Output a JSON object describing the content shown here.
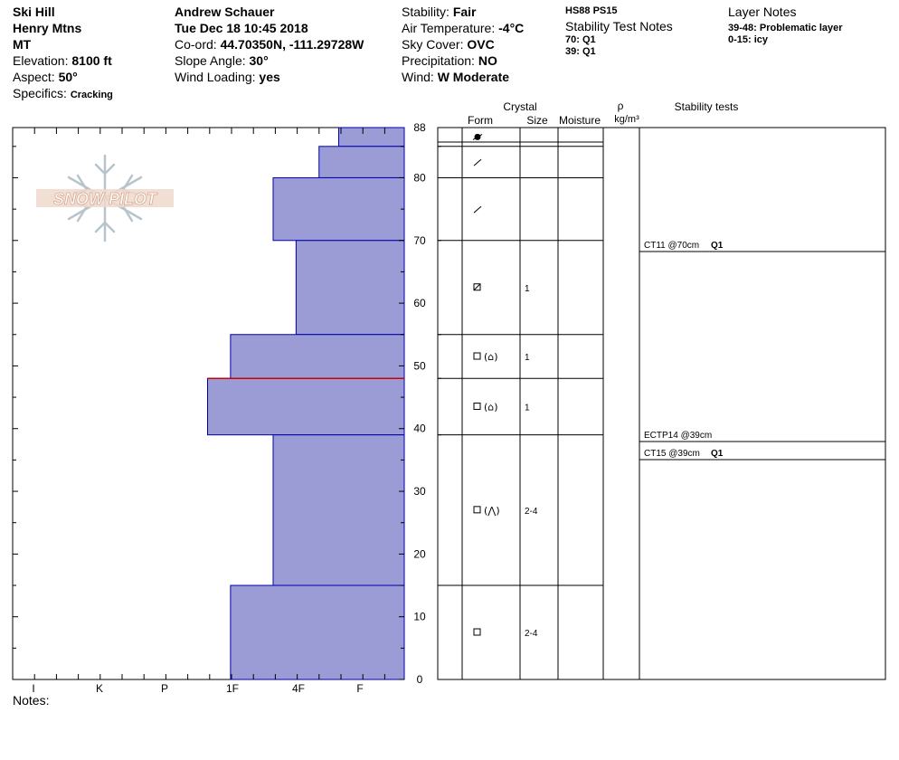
{
  "header": {
    "location": "Ski Hill",
    "range": "Henry Mtns",
    "state": "MT",
    "elevation_label": "Elevation:",
    "elevation": "8100 ft",
    "aspect_label": "Aspect:",
    "aspect": "50°",
    "specifics_label": "Specifics:",
    "specifics": "Cracking",
    "observer": "Andrew Schauer",
    "datetime": "Tue Dec 18 10:45 2018",
    "coord_label": "Co-ord:",
    "coord": "44.70350N, -111.29728W",
    "slope_label": "Slope Angle:",
    "slope": "30°",
    "wind_loading_label": "Wind Loading:",
    "wind_loading": "yes",
    "stability_label": "Stability:",
    "stability": "Fair",
    "air_temp_label": "Air Temperature:",
    "air_temp": "-4°C",
    "sky_label": "Sky Cover:",
    "sky": "OVC",
    "precip_label": "Precipitation:",
    "precip": "NO",
    "wind_label": "Wind:",
    "wind": "W Moderate",
    "hs_ps": "HS88  PS15",
    "stability_notes_title": "Stability Test Notes",
    "stability_notes": [
      "70: Q1",
      "39: Q1"
    ],
    "layer_notes_title": "Layer Notes",
    "layer_notes": [
      "39-48: Problematic layer",
      "0-15: icy"
    ]
  },
  "logo_text": "SNOW PILOT",
  "notes_label": "Notes:",
  "columns": {
    "crystal": "Crystal",
    "form": "Form",
    "size": "Size",
    "moisture": "Moisture",
    "rho": "ρ",
    "density_unit": "kg/m³",
    "stability_tests": "Stability tests"
  },
  "colors": {
    "hardness_fill": "#9b9bd6",
    "hardness_stroke": "#0000aa",
    "problem_line": "#cc0000"
  },
  "chart_data": {
    "type": "bar",
    "orientation": "horizontal-profile",
    "hardness_ticks": [
      "I",
      "K",
      "P",
      "1F",
      "4F",
      "F"
    ],
    "height_ticks": [
      0,
      10,
      20,
      30,
      40,
      50,
      60,
      70,
      80,
      88
    ],
    "ylim": [
      0,
      88
    ],
    "hardness_scale_note": "hardness in units of the hand-hardness axis, 0 = right edge",
    "layers": [
      {
        "bottom": 85,
        "top": 88,
        "hardness": 1.0,
        "form": "decomposing",
        "size": ""
      },
      {
        "bottom": 80,
        "top": 85,
        "hardness": 1.3,
        "form": "precip-particle",
        "size": ""
      },
      {
        "bottom": 70,
        "top": 80,
        "hardness": 2.0,
        "form": "precip-particle",
        "size": ""
      },
      {
        "bottom": 55,
        "top": 70,
        "hardness": 1.65,
        "form": "faceted-rounded",
        "size": "1"
      },
      {
        "bottom": 48,
        "top": 55,
        "hardness": 2.65,
        "form": "faceted(rounded)",
        "size": "1"
      },
      {
        "bottom": 39,
        "top": 48,
        "hardness": 3.0,
        "form": "faceted(rounded)",
        "size": "1"
      },
      {
        "bottom": 15,
        "top": 39,
        "hardness": 2.0,
        "form": "faceted(depth hoar)",
        "size": "2-4"
      },
      {
        "bottom": 0,
        "top": 15,
        "hardness": 2.65,
        "form": "faceted",
        "size": "2-4"
      }
    ],
    "problem_layer_line": 48,
    "form_labels": [
      "",
      "",
      "",
      "",
      "(⌂)",
      "(⌂)",
      "(⋀)",
      ""
    ],
    "stability_tests": [
      {
        "height": 70,
        "text": "CT11 @70cm",
        "quality": "Q1"
      },
      {
        "height": 39,
        "text": "ECTP14 @39cm",
        "quality": ""
      },
      {
        "height": 39,
        "text": "CT15 @39cm",
        "quality": "Q1"
      }
    ]
  }
}
